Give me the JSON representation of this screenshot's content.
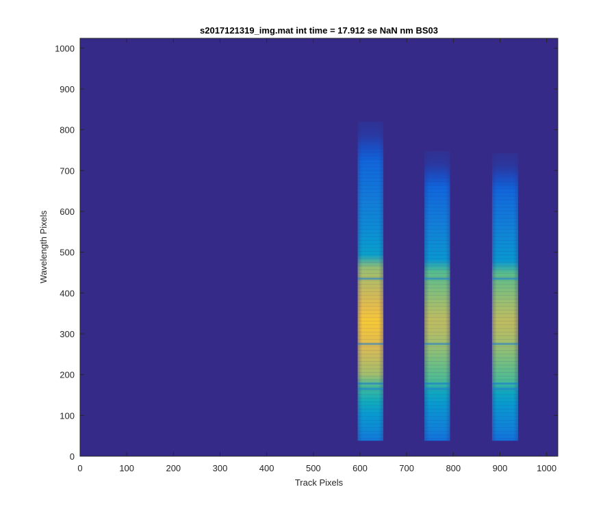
{
  "chart_data": {
    "type": "heatmap",
    "title": "s2017121319_img.mat int time = 17.912 se  NaN nm BS03",
    "xlabel": "Track Pixels",
    "ylabel": "Wavelength Pixels",
    "xlim": [
      0,
      1024
    ],
    "ylim": [
      0,
      1024
    ],
    "xticks": [
      "0",
      "100",
      "200",
      "300",
      "400",
      "500",
      "600",
      "700",
      "800",
      "900",
      "1000"
    ],
    "yticks": [
      "0",
      "100",
      "200",
      "300",
      "400",
      "500",
      "600",
      "700",
      "800",
      "900",
      "1000"
    ],
    "grid": false,
    "colormap": "parula",
    "background_color": "#352a87",
    "tracks": [
      {
        "x_start": 595,
        "x_end": 650,
        "y_start": 38,
        "y_end": 820,
        "peak_intensity": 0.92
      },
      {
        "x_start": 738,
        "x_end": 793,
        "y_start": 38,
        "y_end": 748,
        "peak_intensity": 0.8
      },
      {
        "x_start": 883,
        "x_end": 939,
        "y_start": 38,
        "y_end": 742,
        "peak_intensity": 0.8
      }
    ],
    "bright_region": {
      "y_start": 180,
      "y_end": 470
    },
    "dark_lines_y": [
      165,
      178,
      275,
      435
    ]
  }
}
